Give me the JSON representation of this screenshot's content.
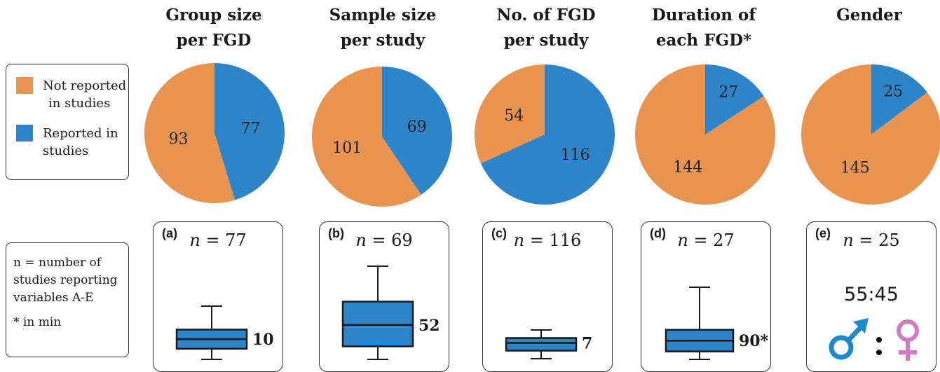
{
  "legend": {
    "items": [
      {
        "label_line1": "Not reported",
        "label_line2": "in studies",
        "color": "#E8934F"
      },
      {
        "label_line1": "Reported in",
        "label_line2": "studies",
        "color": "#2E84C8"
      }
    ]
  },
  "note": {
    "line1": "n = number of",
    "line2": "studies reporting",
    "line3": "variables A-E",
    "line4": "* in min"
  },
  "chart_data": [
    {
      "type": "pie",
      "title_line1": "Group size",
      "title_line2": "per FGD",
      "slices": [
        {
          "name": "Not reported in studies",
          "value": 93
        },
        {
          "name": "Reported in studies",
          "value": 77
        }
      ]
    },
    {
      "type": "pie",
      "title_line1": "Sample size",
      "title_line2": "per study",
      "slices": [
        {
          "name": "Not reported in studies",
          "value": 101
        },
        {
          "name": "Reported in studies",
          "value": 69
        }
      ]
    },
    {
      "type": "pie",
      "title_line1": "No. of FGD",
      "title_line2": "per study",
      "slices": [
        {
          "name": "Not reported in studies",
          "value": 54
        },
        {
          "name": "Reported in studies",
          "value": 116
        }
      ]
    },
    {
      "type": "pie",
      "title_line1": "Duration of",
      "title_line2": "each FGD*",
      "slices": [
        {
          "name": "Not reported in studies",
          "value": 144
        },
        {
          "name": "Reported in studies",
          "value": 27
        }
      ]
    },
    {
      "type": "pie",
      "title_line1": "Gender",
      "title_line2": "",
      "slices": [
        {
          "name": "Not reported in studies",
          "value": 145
        },
        {
          "name": "Reported in studies",
          "value": 25
        }
      ]
    }
  ],
  "panels": [
    {
      "label": "(a)",
      "n_var": "n",
      "n_text": " = 77",
      "median_label": "10",
      "box": {
        "whisker_min": 0.0,
        "q1": 0.2,
        "median": 0.38,
        "q3": 0.56,
        "whisker_max": 1.0
      }
    },
    {
      "label": "(b)",
      "n_var": "n",
      "n_text": " = 69",
      "median_label": "52",
      "box": {
        "whisker_min": 0.0,
        "q1": 0.14,
        "median": 0.37,
        "q3": 0.62,
        "whisker_max": 1.0
      }
    },
    {
      "label": "(c)",
      "n_var": "n",
      "n_text": " = 116",
      "median_label": "7",
      "box": {
        "whisker_min": 0.0,
        "q1": 0.28,
        "median": 0.55,
        "q3": 0.72,
        "whisker_max": 1.0
      }
    },
    {
      "label": "(d)",
      "n_var": "n",
      "n_text": " = 27",
      "median_label": "90*",
      "box": {
        "whisker_min": 0.0,
        "q1": 0.11,
        "median": 0.26,
        "q3": 0.41,
        "whisker_max": 1.0
      }
    },
    {
      "label": "(e)",
      "n_var": "n",
      "n_text": " = 25",
      "ratio": "55:45",
      "icons": {
        "male": "male-symbol-icon",
        "female": "female-symbol-icon",
        "male_color": "#1E88D0",
        "female_color": "#D27AC7"
      }
    }
  ]
}
